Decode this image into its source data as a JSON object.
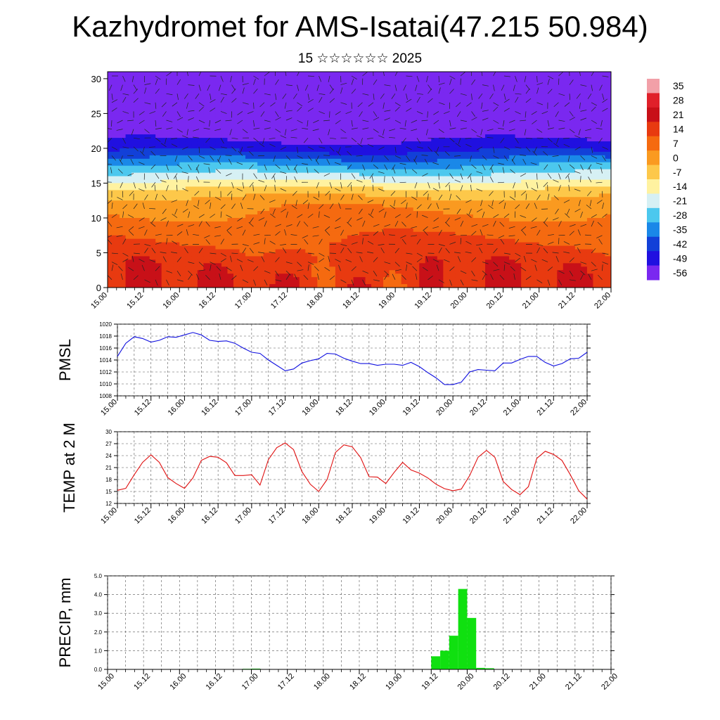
{
  "header": {
    "title": "Kazhydromet for AMS-Isatai(47.215 50.984)",
    "subtitle": "15 ☆☆☆☆☆☆ 2025"
  },
  "time_axis_labels": [
    "15.00",
    "15.12",
    "16.00",
    "16.12",
    "17.00",
    "17.12",
    "18.00",
    "18.12",
    "19.00",
    "19.12",
    "20.00",
    "20.12",
    "21.00",
    "21.12",
    "22.00"
  ],
  "chart_data": [
    {
      "type": "heatmap",
      "name": "temperature-height-section",
      "y_ticks": [
        "0",
        "5",
        "10",
        "15",
        "20",
        "25",
        "30"
      ],
      "ylim": [
        0,
        31
      ],
      "color_scale": {
        "labels": [
          "35",
          "28",
          "21",
          "14",
          "7",
          "0",
          "-7",
          "-14",
          "-21",
          "-28",
          "-35",
          "-42",
          "-49",
          "-56"
        ],
        "colors": [
          "#f2a0a8",
          "#e0202a",
          "#c81018",
          "#e83a10",
          "#f56a10",
          "#fa9a20",
          "#fdc84a",
          "#fff2a0",
          "#d6f0f4",
          "#4cc8ee",
          "#1a88e8",
          "#1240d8",
          "#2010e0",
          "#7a28f0"
        ]
      },
      "levels_profile": [
        [
          0,
          20
        ],
        [
          4,
          18
        ],
        [
          8,
          12
        ],
        [
          12,
          5
        ],
        [
          14,
          -5
        ],
        [
          17,
          -25
        ],
        [
          20,
          -45
        ],
        [
          23,
          -56
        ],
        [
          26,
          -58
        ],
        [
          31,
          -62
        ]
      ]
    },
    {
      "type": "line",
      "name": "pmsl",
      "ylabel": "PMSL",
      "ylim": [
        1008,
        1020
      ],
      "y_ticks": [
        "1008",
        "1010",
        "1012",
        "1014",
        "1016",
        "1018",
        "1020"
      ],
      "color": "#1010e0",
      "x_hours": [
        0,
        3,
        6,
        9,
        12,
        15,
        18,
        21,
        24,
        27,
        30,
        33,
        36,
        39,
        42,
        45,
        48,
        51,
        54,
        57,
        60,
        63,
        66,
        69,
        72,
        75,
        78,
        81,
        84,
        87,
        90,
        93,
        96,
        99,
        102,
        105,
        108,
        111,
        114,
        117,
        120,
        123,
        126,
        129,
        132,
        135,
        138,
        141,
        144,
        147,
        150,
        153,
        156,
        159,
        162,
        165,
        168
      ],
      "values": [
        1014.6,
        1016.8,
        1017.9,
        1017.6,
        1017.0,
        1017.3,
        1017.9,
        1017.8,
        1018.2,
        1018.6,
        1018.2,
        1017.3,
        1017.1,
        1017.2,
        1016.8,
        1016.0,
        1015.3,
        1015.1,
        1014.0,
        1013.1,
        1012.2,
        1012.5,
        1013.5,
        1013.9,
        1014.2,
        1015.1,
        1015.0,
        1014.3,
        1013.8,
        1013.4,
        1013.4,
        1013.1,
        1013.3,
        1013.3,
        1013.1,
        1013.6,
        1012.9,
        1011.9,
        1011.0,
        1009.9,
        1009.9,
        1010.3,
        1012.0,
        1012.4,
        1012.3,
        1012.2,
        1013.5,
        1013.5,
        1014.1,
        1014.6,
        1014.6,
        1013.6,
        1013.0,
        1013.4,
        1014.2,
        1014.3,
        1015.3
      ]
    },
    {
      "type": "line",
      "name": "temp-2m",
      "ylabel": "TEMP at 2 M",
      "ylim": [
        12,
        30
      ],
      "y_ticks": [
        "12",
        "15",
        "18",
        "21",
        "24",
        "27",
        "30"
      ],
      "color": "#e01010",
      "x_hours": [
        0,
        3,
        6,
        9,
        12,
        15,
        18,
        21,
        24,
        27,
        30,
        33,
        36,
        39,
        42,
        45,
        48,
        51,
        54,
        57,
        60,
        63,
        66,
        69,
        72,
        75,
        78,
        81,
        84,
        87,
        90,
        93,
        96,
        99,
        102,
        105,
        108,
        111,
        114,
        117,
        120,
        123,
        126,
        129,
        132,
        135,
        138,
        141,
        144,
        147,
        150,
        153,
        156,
        159,
        162,
        165,
        168
      ],
      "values": [
        15.3,
        15.8,
        19.2,
        22.3,
        24.2,
        22.3,
        18.5,
        17.0,
        15.8,
        18.4,
        22.8,
        23.8,
        23.6,
        22.2,
        19.0,
        19.0,
        19.2,
        16.6,
        23.0,
        26.0,
        27.2,
        25.5,
        20.0,
        16.8,
        15.0,
        18.0,
        24.8,
        26.7,
        26.2,
        23.5,
        18.7,
        18.6,
        17.0,
        19.8,
        22.3,
        20.4,
        19.6,
        18.4,
        16.8,
        15.7,
        15.2,
        15.6,
        19.0,
        23.6,
        25.3,
        23.6,
        17.5,
        15.5,
        14.2,
        16.2,
        23.3,
        25.1,
        24.3,
        22.8,
        19.2,
        15.2,
        13.1
      ]
    },
    {
      "type": "bar",
      "name": "precip",
      "ylabel": "PRECIP, mm",
      "ylim": [
        0,
        5
      ],
      "y_ticks": [
        "0.0",
        "1.0",
        "2.0",
        "3.0",
        "4.0",
        "5.0"
      ],
      "color": "#10e010",
      "x_hours": [
        45,
        48,
        108,
        111,
        114,
        117,
        120,
        123,
        126,
        162
      ],
      "values": [
        0.03,
        0.04,
        0.7,
        1.0,
        1.8,
        4.3,
        2.75,
        0.08,
        0.06,
        0.02
      ]
    }
  ]
}
